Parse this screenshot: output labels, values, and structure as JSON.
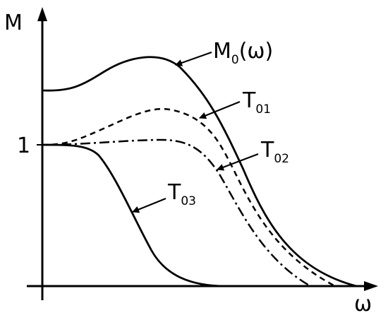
{
  "axes": {
    "y_label": "M",
    "x_label": "ω",
    "y_tick": "1"
  },
  "curves": {
    "m0": {
      "label_main": "M",
      "label_sub": "0",
      "label_tail": "(ω)",
      "style": "solid"
    },
    "t01": {
      "label_main": "T",
      "label_sub": "01",
      "style": "dashed"
    },
    "t02": {
      "label_main": "T",
      "label_sub": "02",
      "style": "dash-dot"
    },
    "t03": {
      "label_main": "T",
      "label_sub": "03",
      "style": "solid"
    }
  },
  "colors": {
    "ink": "#000000",
    "background": "#ffffff"
  }
}
